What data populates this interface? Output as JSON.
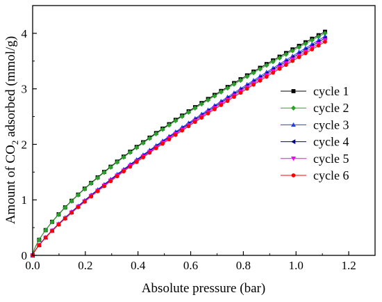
{
  "chart_data": {
    "type": "line",
    "title": "",
    "xlabel": "Absolute pressure (bar)",
    "ylabel_parts": [
      "Amount of CO",
      "2",
      " adsorbed (mmol/g)"
    ],
    "xlim": [
      0.0,
      1.3
    ],
    "ylim": [
      0,
      4.5
    ],
    "xticks": [
      "0.0",
      "0.2",
      "0.4",
      "0.6",
      "0.8",
      "1.0",
      "1.2"
    ],
    "yticks": [
      "0",
      "1",
      "2",
      "3",
      "4"
    ],
    "grid": false,
    "legend_position": "right-center",
    "series": [
      {
        "name": "cycle 1",
        "color": "#000000",
        "marker": "square",
        "model": {
          "a": 3.745,
          "b": 0.7
        },
        "x": [
          0.0,
          0.1,
          0.2,
          0.3,
          0.4,
          0.5,
          0.6,
          0.7,
          0.8,
          0.9,
          1.0,
          1.11
        ],
        "y": [
          0.0,
          0.75,
          1.21,
          1.61,
          1.97,
          2.31,
          2.62,
          2.92,
          3.21,
          3.49,
          3.75,
          4.02
        ]
      },
      {
        "name": "cycle 2",
        "color": "#2ca02c",
        "marker": "diamond",
        "model": {
          "a": 3.72,
          "b": 0.7
        },
        "x": [
          0.0,
          0.1,
          0.2,
          0.3,
          0.4,
          0.5,
          0.6,
          0.7,
          0.8,
          0.9,
          1.0,
          1.11
        ],
        "y": [
          0.0,
          0.74,
          1.2,
          1.6,
          1.96,
          2.29,
          2.6,
          2.9,
          3.19,
          3.46,
          3.72,
          3.99
        ]
      },
      {
        "name": "cycle 3",
        "color": "#1f3fff",
        "marker": "triangle-up",
        "model": {
          "a": 3.63,
          "b": 0.8
        },
        "x": [
          0.0,
          0.1,
          0.2,
          0.3,
          0.4,
          0.5,
          0.6,
          0.7,
          0.8,
          0.9,
          1.0,
          1.11
        ],
        "y": [
          0.0,
          0.57,
          1.0,
          1.39,
          1.74,
          2.08,
          2.41,
          2.72,
          3.01,
          3.3,
          3.57,
          3.86
        ]
      },
      {
        "name": "cycle 4",
        "color": "#000080",
        "marker": "triangle-left",
        "model": {
          "a": 3.6,
          "b": 0.8
        },
        "x": [
          0.0,
          0.1,
          0.2,
          0.3,
          0.4,
          0.5,
          0.6,
          0.7,
          0.8,
          0.9,
          1.0,
          1.11
        ],
        "y": [
          0.0,
          0.57,
          0.99,
          1.38,
          1.73,
          2.07,
          2.39,
          2.69,
          2.99,
          3.27,
          3.54,
          3.83
        ]
      },
      {
        "name": "cycle 5",
        "color": "#ff00ff",
        "marker": "triangle-down",
        "model": {
          "a": 3.57,
          "b": 0.8
        },
        "x": [
          0.0,
          0.1,
          0.2,
          0.3,
          0.4,
          0.5,
          0.6,
          0.7,
          0.8,
          0.9,
          1.0,
          1.11
        ],
        "y": [
          0.0,
          0.56,
          0.98,
          1.37,
          1.72,
          2.05,
          2.37,
          2.67,
          2.96,
          3.24,
          3.51,
          3.8
        ]
      },
      {
        "name": "cycle 6",
        "color": "#ff0000",
        "marker": "circle",
        "model": {
          "a": 3.54,
          "b": 0.8
        },
        "x": [
          0.0,
          0.1,
          0.2,
          0.3,
          0.4,
          0.5,
          0.6,
          0.7,
          0.8,
          0.9,
          1.0,
          1.11
        ],
        "y": [
          0.0,
          0.56,
          0.97,
          1.36,
          1.7,
          2.04,
          2.35,
          2.65,
          2.94,
          3.22,
          3.48,
          3.77
        ]
      }
    ]
  }
}
